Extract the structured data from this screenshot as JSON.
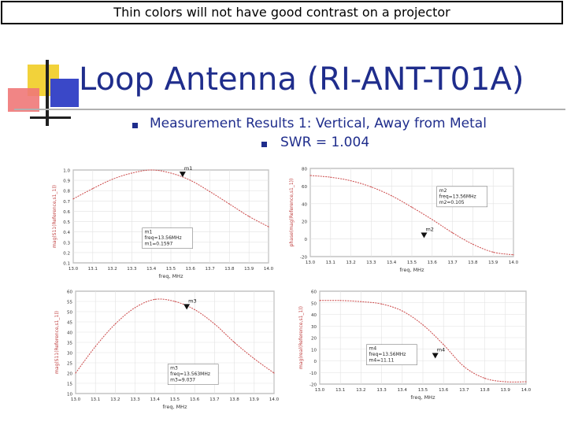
{
  "banner": "Thin colors will not have good contrast on a projector",
  "title": "Loop Antenna (RI-ANT-T01A)",
  "bullet1": "Measurement Results 1:  Vertical, Away from Metal",
  "bullet2": "SWR = 1.004",
  "colors": {
    "title": "#1f2d8c",
    "curve": "#cc4a4a",
    "logo_yellow": "#f2d23a",
    "logo_red": "#f07878",
    "logo_blue": "#3a48c8"
  },
  "chart_data": [
    {
      "type": "line",
      "ylabel": "mag(S11(Reference,s1_1))",
      "xlabel": "freq, MHz",
      "x_ticks": [
        "13.0",
        "13.1",
        "13.2",
        "13.3",
        "13.4",
        "13.5",
        "13.6",
        "13.7",
        "13.8",
        "13.9",
        "14.0"
      ],
      "y_ticks": [
        "1.0",
        "0.9",
        "0.8",
        "0.7",
        "0.6",
        "0.5",
        "0.4",
        "0.3",
        "0.2",
        "0.1"
      ],
      "xlim": [
        13.0,
        14.0
      ],
      "ylim": [
        0.1,
        1.0
      ],
      "x": [
        13.0,
        13.1,
        13.2,
        13.3,
        13.4,
        13.5,
        13.6,
        13.7,
        13.8,
        13.9,
        14.0
      ],
      "y": [
        0.72,
        0.82,
        0.91,
        0.97,
        1.0,
        0.97,
        0.9,
        0.79,
        0.67,
        0.55,
        0.45
      ],
      "marker": {
        "label": "m1",
        "x": 13.56,
        "y": 0.93
      },
      "readout": [
        "m1",
        "freq=13.56MHz",
        "m1=0.1597"
      ]
    },
    {
      "type": "line",
      "ylabel": "phase(mag(Reference,s1_1))",
      "xlabel": "freq, MHz",
      "x_ticks": [
        "13.0",
        "13.1",
        "13.2",
        "13.3",
        "13.4",
        "13.5",
        "13.6",
        "13.7",
        "13.8",
        "13.9",
        "14.0"
      ],
      "y_ticks": [
        "80",
        "60",
        "40",
        "20",
        "0",
        "-20"
      ],
      "xlim": [
        13.0,
        14.0
      ],
      "ylim": [
        -20,
        80
      ],
      "x": [
        13.0,
        13.1,
        13.2,
        13.3,
        13.4,
        13.5,
        13.6,
        13.7,
        13.8,
        13.9,
        14.0
      ],
      "y": [
        72,
        70,
        66,
        59,
        49,
        36,
        22,
        7,
        -6,
        -15,
        -18
      ],
      "marker": {
        "label": "m2",
        "x": 13.56,
        "y": 1
      },
      "readout": [
        "m2",
        "freq=13.56MHz",
        "m2=0.105"
      ]
    },
    {
      "type": "line",
      "ylabel": "mag(S11(Reference,s1_1))",
      "xlabel": "freq, MHz",
      "x_ticks": [
        "13.0",
        "13.1",
        "13.2",
        "13.3",
        "13.4",
        "13.5",
        "13.6",
        "13.7",
        "13.8",
        "13.9",
        "14.0"
      ],
      "y_ticks": [
        "60",
        "55",
        "50",
        "45",
        "40",
        "35",
        "30",
        "25",
        "20",
        "15",
        "10"
      ],
      "xlim": [
        13.0,
        14.0
      ],
      "ylim": [
        10,
        60
      ],
      "x": [
        13.0,
        13.1,
        13.2,
        13.3,
        13.4,
        13.5,
        13.6,
        13.7,
        13.8,
        13.9,
        14.0
      ],
      "y": [
        20,
        33,
        44,
        52,
        56,
        55,
        51,
        44,
        35,
        27,
        20
      ],
      "marker": {
        "label": "m3",
        "x": 13.56,
        "y": 51
      },
      "readout": [
        "m3",
        "freq=13.563MHz",
        "m3=9.037"
      ]
    },
    {
      "type": "line",
      "ylabel": "mag(real(Reference,s1_1))",
      "xlabel": "freq, MHz",
      "x_ticks": [
        "13.0",
        "13.1",
        "13.2",
        "13.3",
        "13.4",
        "13.5",
        "13.6",
        "13.7",
        "13.8",
        "13.9",
        "14.0"
      ],
      "y_ticks": [
        "60",
        "50",
        "40",
        "30",
        "20",
        "10",
        "0",
        "-10",
        "-20"
      ],
      "xlim": [
        13.0,
        14.0
      ],
      "ylim": [
        -20,
        60
      ],
      "x": [
        13.0,
        13.1,
        13.2,
        13.3,
        13.4,
        13.5,
        13.6,
        13.7,
        13.8,
        13.9,
        14.0
      ],
      "y": [
        52,
        52,
        51,
        49,
        43,
        31,
        14,
        -5,
        -15,
        -18,
        -18
      ],
      "marker": {
        "label": "m4",
        "x": 13.56,
        "y": 2
      },
      "readout": [
        "m4",
        "freq=13.56MHz",
        "m4=11.11"
      ]
    }
  ]
}
